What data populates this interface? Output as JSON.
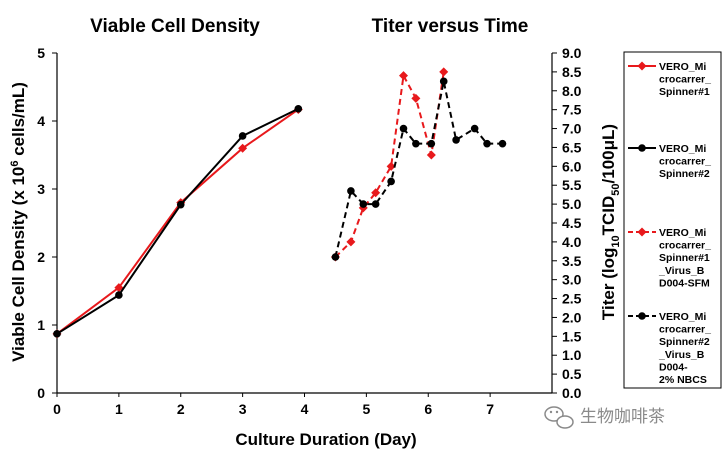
{
  "chart_data": {
    "type": "line",
    "titles": {
      "left": "Viable Cell Density",
      "right": "Titer versus Time"
    },
    "xlabel": "Culture Duration (Day)",
    "x_ticks": [
      "0",
      "1",
      "2",
      "3",
      "4",
      "5",
      "6",
      "7"
    ],
    "xlim": [
      0,
      8
    ],
    "ylabel_left": {
      "main": "Viable Cell Density (x 10",
      "sup": "6",
      "rest": " cells/mL)"
    },
    "ylim_left": [
      0,
      5
    ],
    "y_ticks_left": [
      "0",
      "1",
      "2",
      "3",
      "4",
      "5"
    ],
    "ylabel_right": {
      "main": "Titer (log",
      "sub": "10",
      "mid": "TCID",
      "sub2": "50",
      "rest": "/100μL)"
    },
    "ylim_right": [
      0,
      9
    ],
    "y_ticks_right": [
      "0.0",
      "0.5",
      "1.0",
      "1.5",
      "2.0",
      "2.5",
      "3.0",
      "3.5",
      "4.0",
      "4.5",
      "5.0",
      "5.5",
      "6.0",
      "6.5",
      "7.0",
      "7.5",
      "8.0",
      "8.5",
      "9.0"
    ],
    "series": [
      {
        "name": "VERO_Microcarrer_Spinner#1",
        "legend_lines": [
          "VERO_Mi",
          "crocarrer_",
          "Spinner#1"
        ],
        "axis": "left",
        "color": "#e8191c",
        "dash": false,
        "marker": "diamond",
        "x": [
          0,
          1,
          2,
          3,
          3.9
        ],
        "y": [
          0.87,
          1.55,
          2.8,
          3.6,
          4.17
        ]
      },
      {
        "name": "VERO_Microcarrer_Spinner#2",
        "legend_lines": [
          "VERO_Mi",
          "crocarrer_",
          "Spinner#2"
        ],
        "axis": "left",
        "color": "#000000",
        "dash": false,
        "marker": "circle",
        "x": [
          0,
          1,
          2,
          3,
          3.9
        ],
        "y": [
          0.87,
          1.44,
          2.77,
          3.78,
          4.18
        ]
      },
      {
        "name": "VERO_Microcarrer_Spinner#1_Virus_BD004-SFM",
        "legend_lines": [
          "VERO_Mi",
          "crocarrer_",
          "Spinner#1",
          "_Virus_B",
          "D004-SFM"
        ],
        "axis": "right",
        "color": "#e8191c",
        "dash": true,
        "marker": "diamond",
        "x": [
          4.5,
          4.75,
          4.95,
          5.15,
          5.4,
          5.6,
          5.8,
          6.05,
          6.25,
          6.45
        ],
        "y": [
          3.6,
          4.0,
          4.9,
          5.3,
          6.0,
          8.4,
          7.8,
          6.3,
          8.5,
          null
        ]
      },
      {
        "name": "VERO_Microcarrer_Spinner#2_Virus_BD004-2%NBCS",
        "legend_lines": [
          "VERO_Mi",
          "crocarrer_",
          "Spinner#2",
          "_Virus_B",
          "D004-",
          "2% NBCS"
        ],
        "axis": "right",
        "color": "#000000",
        "dash": true,
        "marker": "circle",
        "x": [
          4.5,
          4.75,
          4.95,
          5.15,
          5.4,
          5.6,
          5.8,
          6.05,
          6.25,
          6.45,
          6.75,
          6.95,
          7.2,
          7.45
        ],
        "y": [
          3.6,
          5.35,
          5.0,
          5.0,
          5.6,
          7.0,
          6.6,
          6.6,
          8.25,
          6.7,
          7.0,
          6.6,
          6.6,
          null
        ]
      }
    ],
    "watermark": "生物咖啡茶"
  }
}
